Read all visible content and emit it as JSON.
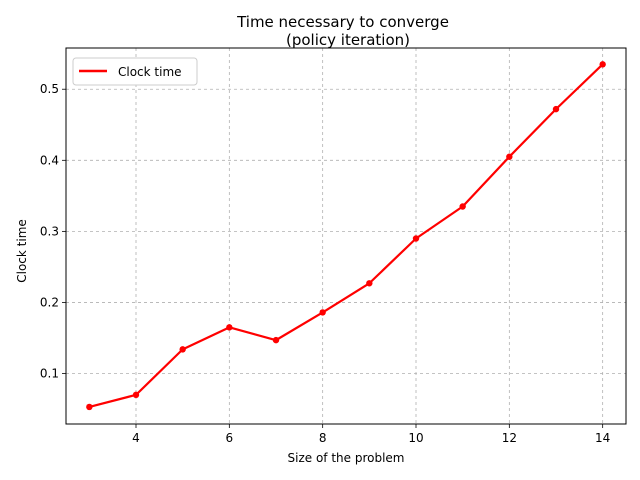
{
  "chart_data": {
    "type": "line",
    "title_line1": "Time necessary to converge",
    "title_line2": "(policy iteration)",
    "xlabel": "Size of the problem",
    "ylabel": "Clock time",
    "xlim": [
      2.5,
      14.5
    ],
    "ylim": [
      0.029,
      0.558
    ],
    "xticks": [
      4,
      6,
      8,
      10,
      12,
      14
    ],
    "xtick_labels": [
      "4",
      "6",
      "8",
      "10",
      "12",
      "14"
    ],
    "yticks": [
      0.1,
      0.2,
      0.3,
      0.4,
      0.5
    ],
    "ytick_labels": [
      "0.1",
      "0.2",
      "0.3",
      "0.4",
      "0.5"
    ],
    "grid": true,
    "legend_position": "upper-left",
    "series": [
      {
        "name": "Clock time",
        "color": "#ff0000",
        "x": [
          3,
          4,
          5,
          6,
          7,
          8,
          9,
          10,
          11,
          12,
          13,
          14
        ],
        "y": [
          0.053,
          0.07,
          0.134,
          0.165,
          0.147,
          0.186,
          0.227,
          0.29,
          0.335,
          0.405,
          0.472,
          0.535
        ]
      }
    ]
  }
}
